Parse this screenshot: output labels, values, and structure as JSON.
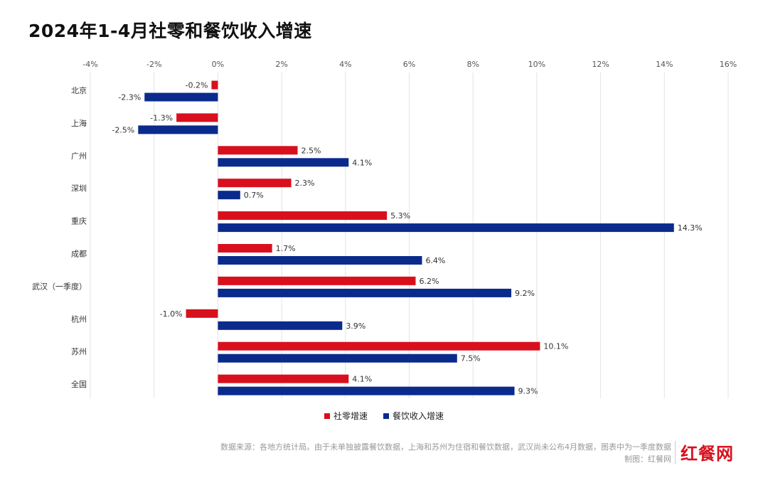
{
  "title": "2024年1-4月社零和餐饮收入增速",
  "legend": {
    "retail_label": "社零增速",
    "catering_label": "餐饮收入增速"
  },
  "footer": {
    "source": "数据来源：各地方统计局。由于未单独披露餐饮数据，上海和苏州为住宿和餐饮数据，武汉尚未公布4月数据，图表中为一季度数据",
    "credit": "制图：红餐网"
  },
  "logo": "红餐网",
  "colors": {
    "retail": "#d8101e",
    "catering": "#0a2b8c",
    "grid": "#e3e3e3"
  },
  "chart_data": {
    "type": "bar",
    "orientation": "horizontal",
    "categories": [
      "北京",
      "上海",
      "广州",
      "深圳",
      "重庆",
      "成都",
      "武汉（一季度）",
      "杭州",
      "苏州",
      "全国"
    ],
    "series": [
      {
        "name": "社零增速",
        "values": [
          -0.2,
          -1.3,
          2.5,
          2.3,
          5.3,
          1.7,
          6.2,
          -1.0,
          10.1,
          4.1
        ]
      },
      {
        "name": "餐饮收入增速",
        "values": [
          -2.3,
          -2.5,
          4.1,
          0.7,
          14.3,
          6.4,
          9.2,
          3.9,
          7.5,
          9.3
        ]
      }
    ],
    "x_ticks": [
      "-4%",
      "-2%",
      "0%",
      "2%",
      "4%",
      "6%",
      "8%",
      "10%",
      "12%",
      "14%",
      "16%"
    ],
    "xlim": [
      -4,
      16
    ],
    "value_unit": "%",
    "axis_position": "top",
    "grid": true,
    "legend_position": "bottom"
  }
}
